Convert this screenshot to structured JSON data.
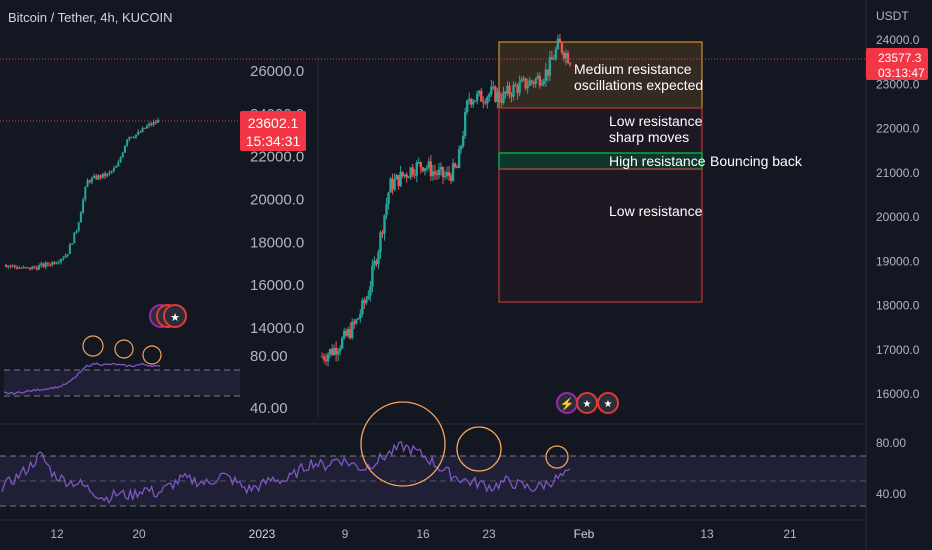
{
  "header": {
    "symbol_title": "Bitcoin / Tether, 4h, KUCOIN"
  },
  "price_axis": {
    "currency": "USDT",
    "ticks": [
      "24000.0",
      "23000.0",
      "22000.0",
      "21000.0",
      "20000.0",
      "19000.0",
      "18000.0",
      "17000.0",
      "16000.0"
    ],
    "last_price": "23577.3",
    "countdown": "03:13:47"
  },
  "inset_chart": {
    "ticks": [
      "26000.0",
      "24000.0",
      "22000.0",
      "20000.0",
      "18000.0",
      "16000.0",
      "14000.0"
    ],
    "last_price": "23602.1",
    "countdown": "15:34:31",
    "rsi_ticks": [
      "80.00",
      "40.00"
    ]
  },
  "rsi_axis": {
    "ticks": [
      "80.00",
      "40.00"
    ]
  },
  "time_axis": {
    "labels": [
      "12",
      "20",
      "2023",
      "9",
      "16",
      "23",
      "Feb",
      "13",
      "21"
    ]
  },
  "annotations": {
    "zone_medium": [
      "Medium resistance",
      "oscillations expected"
    ],
    "zone_low_top": [
      "Low resistance",
      "sharp moves"
    ],
    "zone_high": "High resistance",
    "bouncing": "Bouncing back",
    "zone_low_bottom": "Low resistance"
  },
  "colors": {
    "background": "#131722",
    "up": "#26a69a",
    "down": "#ef5350",
    "rsi_line": "#7e57c2",
    "circle": "#f7a35c",
    "zone_medium": "#f5a623",
    "zone_low": "#e53935",
    "zone_high": "#00c853"
  },
  "chart_data": {
    "type": "candlestick",
    "title": "Bitcoin / Tether, 4h, KUCOIN",
    "y_unit": "USDT",
    "ylim": [
      15500,
      24300
    ],
    "x_labels": [
      "12",
      "20",
      "2023",
      "9",
      "16",
      "23",
      "Feb",
      "13",
      "21"
    ],
    "price_path": [
      [
        "Jan 5",
        16850
      ],
      [
        "Jan 8",
        17000
      ],
      [
        "Jan 10",
        17250
      ],
      [
        "Jan 11",
        17600
      ],
      [
        "Jan 12",
        18200
      ],
      [
        "Jan 13",
        19300
      ],
      [
        "Jan 14",
        20700
      ],
      [
        "Jan 15",
        20900
      ],
      [
        "Jan 16",
        21100
      ],
      [
        "Jan 17",
        21200
      ],
      [
        "Jan 18",
        21000
      ],
      [
        "Jan 19",
        20900
      ],
      [
        "Jan 20",
        21100
      ],
      [
        "Jan 21",
        22700
      ],
      [
        "Jan 22",
        22700
      ],
      [
        "Jan 23",
        22800
      ],
      [
        "Jan 24",
        22700
      ],
      [
        "Jan 25",
        22900
      ],
      [
        "Jan 26",
        23000
      ],
      [
        "Jan 27",
        23100
      ],
      [
        "Jan 28",
        23300
      ],
      [
        "Jan 29",
        23900
      ],
      [
        "Jan 30",
        23577.3
      ]
    ],
    "last_price": 23577.3,
    "zones": [
      {
        "label": "Medium resistance oscillations expected",
        "from": 22500,
        "to": 24000
      },
      {
        "label": "Low resistance sharp moves",
        "from": 21400,
        "to": 22500
      },
      {
        "label": "High resistance",
        "from": 21100,
        "to": 21400
      },
      {
        "label": "Low resistance",
        "from": 18050,
        "to": 21100
      }
    ],
    "rsi": {
      "levels": [
        70,
        50,
        30
      ],
      "ticks": [
        80,
        40
      ],
      "values": [
        45,
        52,
        60,
        71,
        55,
        50,
        48,
        42,
        36,
        40,
        38,
        44,
        40,
        46,
        52,
        50,
        48,
        55,
        50,
        43,
        46,
        52,
        50,
        58,
        65,
        62,
        68,
        64,
        60,
        66,
        72,
        78,
        74,
        68,
        60,
        54,
        50,
        48,
        45,
        50,
        47,
        44,
        47,
        52,
        56
      ]
    }
  }
}
